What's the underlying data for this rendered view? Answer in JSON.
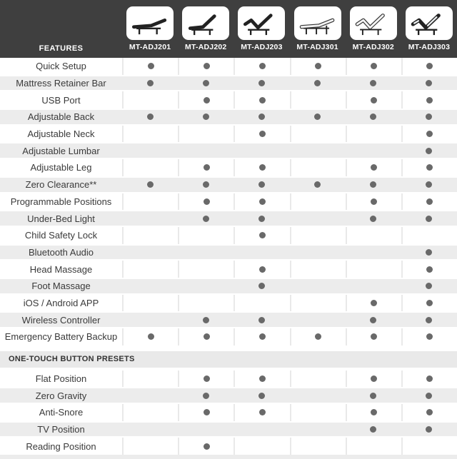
{
  "header": {
    "features_label": "FEATURES",
    "columns": [
      {
        "model": "MT-ADJ201",
        "icon": "bed-flat-icon"
      },
      {
        "model": "MT-ADJ202",
        "icon": "bed-head-up-icon"
      },
      {
        "model": "MT-ADJ203",
        "icon": "bed-head-foot-up-icon"
      },
      {
        "model": "MT-ADJ301",
        "icon": "bed-frame-flat-icon"
      },
      {
        "model": "MT-ADJ302",
        "icon": "bed-frame-head-foot-up-icon"
      },
      {
        "model": "MT-ADJ303",
        "icon": "bed-upholstered-head-foot-up-icon"
      }
    ]
  },
  "colors": {
    "header_bg": "#3f3f3f",
    "header_text": "#ffffff",
    "stripe": "#ececec",
    "section_band": "#e9e9e9",
    "dot": "#696969",
    "label_text": "#3a3a3a",
    "separator": "#e9e9e9"
  },
  "sections": [
    {
      "title": "",
      "rows": [
        {
          "feature": "Quick Setup",
          "availability": [
            true,
            true,
            true,
            true,
            true,
            true
          ]
        },
        {
          "feature": "Mattress Retainer Bar",
          "availability": [
            true,
            true,
            true,
            true,
            true,
            true
          ]
        },
        {
          "feature": "USB Port",
          "availability": [
            false,
            true,
            true,
            false,
            true,
            true
          ]
        },
        {
          "feature": "Adjustable Back",
          "availability": [
            true,
            true,
            true,
            true,
            true,
            true
          ]
        },
        {
          "feature": "Adjustable Neck",
          "availability": [
            false,
            false,
            true,
            false,
            false,
            true
          ]
        },
        {
          "feature": "Adjustable Lumbar",
          "availability": [
            false,
            false,
            false,
            false,
            false,
            true
          ]
        },
        {
          "feature": "Adjustable Leg",
          "availability": [
            false,
            true,
            true,
            false,
            true,
            true
          ]
        },
        {
          "feature": "Zero Clearance**",
          "availability": [
            true,
            true,
            true,
            true,
            true,
            true
          ]
        },
        {
          "feature": "Programmable Positions",
          "availability": [
            false,
            true,
            true,
            false,
            true,
            true
          ]
        },
        {
          "feature": "Under-Bed Light",
          "availability": [
            false,
            true,
            true,
            false,
            true,
            true
          ]
        },
        {
          "feature": "Child Safety Lock",
          "availability": [
            false,
            false,
            true,
            false,
            false,
            false
          ]
        },
        {
          "feature": "Bluetooth Audio",
          "availability": [
            false,
            false,
            false,
            false,
            false,
            true
          ]
        },
        {
          "feature": "Head Massage",
          "availability": [
            false,
            false,
            true,
            false,
            false,
            true
          ]
        },
        {
          "feature": "Foot Massage",
          "availability": [
            false,
            false,
            true,
            false,
            false,
            true
          ]
        },
        {
          "feature": "iOS / Android APP",
          "availability": [
            false,
            false,
            false,
            false,
            true,
            true
          ]
        },
        {
          "feature": "Wireless Controller",
          "availability": [
            false,
            true,
            true,
            false,
            true,
            true
          ]
        },
        {
          "feature": "Emergency Battery Backup",
          "availability": [
            true,
            true,
            true,
            true,
            true,
            true
          ]
        }
      ]
    },
    {
      "title": "ONE-TOUCH BUTTON PRESETS",
      "rows": [
        {
          "feature": "Flat Position",
          "availability": [
            false,
            true,
            true,
            false,
            true,
            true
          ]
        },
        {
          "feature": "Zero Gravity",
          "availability": [
            false,
            true,
            true,
            false,
            true,
            true
          ]
        },
        {
          "feature": "Anti-Snore",
          "availability": [
            false,
            true,
            true,
            false,
            true,
            true
          ]
        },
        {
          "feature": "TV Position",
          "availability": [
            false,
            false,
            false,
            false,
            true,
            true
          ]
        },
        {
          "feature": "Reading Position",
          "availability": [
            false,
            true,
            false,
            false,
            false,
            false
          ]
        }
      ]
    }
  ]
}
